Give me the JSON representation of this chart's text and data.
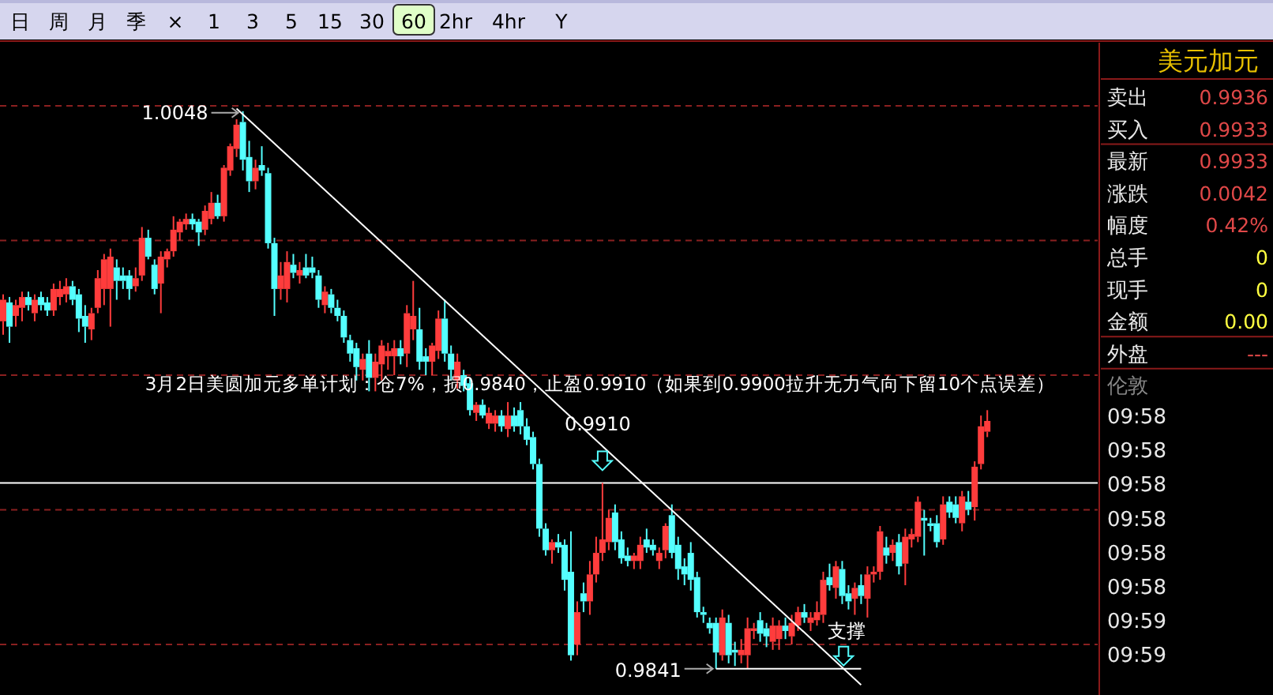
{
  "chart_data": [
    {
      "type": "candlestick",
      "categories": [
        null,
        null,
        null,
        null,
        null,
        null,
        null,
        null,
        null,
        null,
        null,
        null,
        null,
        null,
        null,
        null,
        null,
        null,
        null,
        null,
        null,
        null,
        null,
        null,
        null,
        null,
        null,
        null,
        null,
        null,
        null,
        null,
        null,
        null,
        null,
        null,
        null,
        null,
        null,
        null,
        null,
        null,
        null,
        null,
        null,
        null,
        null,
        null,
        null,
        null,
        null,
        null,
        null,
        null,
        null,
        null,
        null,
        null,
        null,
        null,
        null,
        null,
        null,
        null,
        null,
        null,
        null,
        null,
        null,
        null,
        null,
        null,
        null,
        null,
        null,
        null,
        null,
        null,
        null,
        null,
        null,
        null,
        null,
        null,
        null,
        null,
        null,
        null,
        null,
        null,
        null,
        null,
        null,
        null,
        null,
        null,
        null,
        null,
        null,
        null,
        null,
        null,
        null,
        null,
        null,
        null,
        null,
        null,
        null,
        null,
        null,
        null,
        null,
        null,
        null,
        null,
        null,
        null,
        null,
        null,
        null,
        null,
        null,
        null,
        null,
        null,
        null,
        null,
        null,
        null,
        null,
        null,
        null,
        null,
        null,
        null,
        null,
        null,
        null,
        null,
        null,
        null,
        null,
        null,
        null,
        null,
        null,
        null,
        null,
        null,
        null,
        null,
        null,
        null,
        null,
        null,
        null
      ],
      "ohlc": [
        [
          0.997,
          0.998,
          0.9965,
          0.9978
        ],
        [
          0.9977,
          0.9979,
          0.9962,
          0.9968
        ],
        [
          0.9972,
          0.9978,
          0.9968,
          0.9976
        ],
        [
          0.9975,
          0.9981,
          0.997,
          0.9979
        ],
        [
          0.9979,
          0.9981,
          0.9974,
          0.9976
        ],
        [
          0.9973,
          0.998,
          0.997,
          0.9978
        ],
        [
          0.9979,
          0.9981,
          0.9974,
          0.9976
        ],
        [
          0.9977,
          0.9979,
          0.9972,
          0.9974
        ],
        [
          0.9974,
          0.9984,
          0.9972,
          0.9982
        ],
        [
          0.9979,
          0.9985,
          0.9976,
          0.9982
        ],
        [
          0.998,
          0.9986,
          0.9977,
          0.9983
        ],
        [
          0.9983,
          0.9985,
          0.9976,
          0.9978
        ],
        [
          0.998,
          0.9982,
          0.9966,
          0.9971
        ],
        [
          0.9972,
          0.9976,
          0.9962,
          0.9968
        ],
        [
          0.9967,
          0.9975,
          0.9963,
          0.9973
        ],
        [
          0.9975,
          0.9989,
          0.9973,
          0.9986
        ],
        [
          0.9982,
          0.9995,
          0.9976,
          0.9993
        ],
        [
          0.9982,
          0.9997,
          0.9968,
          0.9994
        ],
        [
          0.999,
          0.9993,
          0.9978,
          0.9985
        ],
        [
          0.9987,
          0.999,
          0.9982,
          0.9985
        ],
        [
          0.9987,
          0.9989,
          0.9978,
          0.9982
        ],
        [
          0.9983,
          0.999,
          0.9981,
          0.9986
        ],
        [
          0.9987,
          1.0005,
          0.9985,
          1.0001
        ],
        [
          1.0001,
          1.0004,
          0.9993,
          0.9994
        ],
        [
          0.9991,
          0.9993,
          0.998,
          0.9982
        ],
        [
          0.9984,
          0.9996,
          0.9973,
          0.9994
        ],
        [
          0.9993,
          0.9997,
          0.999,
          0.9996
        ],
        [
          0.9996,
          1.0009,
          0.9994,
          1.0004
        ],
        [
          1.0003,
          1.0008,
          1.0,
          1.0007
        ],
        [
          1.0006,
          1.001,
          1.0004,
          1.0008
        ],
        [
          1.0008,
          1.001,
          1.0004,
          1.0006
        ],
        [
          1.0007,
          1.0008,
          0.9998,
          1.0003
        ],
        [
          1.0004,
          1.0013,
          1.0002,
          1.0011
        ],
        [
          1.0008,
          1.0018,
          1.0006,
          1.0014
        ],
        [
          1.0014,
          1.0017,
          1.0008,
          1.0009
        ],
        [
          1.0009,
          1.0028,
          1.0007,
          1.0027
        ],
        [
          1.0026,
          1.0036,
          1.0024,
          1.0035
        ],
        [
          1.0034,
          1.0045,
          1.0031,
          1.0043
        ],
        [
          1.0044,
          1.0048,
          1.0026,
          1.003
        ],
        [
          1.0031,
          1.0037,
          1.0018,
          1.0022
        ],
        [
          1.0022,
          1.003,
          1.0019,
          1.0027
        ],
        [
          1.0028,
          1.0035,
          1.0024,
          1.0026
        ],
        [
          1.0025,
          1.0027,
          0.9997,
          0.9999
        ],
        [
          0.9999,
          1.0001,
          0.9972,
          0.9982
        ],
        [
          0.9982,
          0.9992,
          0.9978,
          0.9987
        ],
        [
          0.9982,
          0.9996,
          0.9977,
          0.9992
        ],
        [
          0.9991,
          0.9995,
          0.9986,
          0.9988
        ],
        [
          0.9987,
          0.9992,
          0.9984,
          0.9989
        ],
        [
          0.999,
          0.9995,
          0.9986,
          0.9987
        ],
        [
          0.999,
          0.9994,
          0.9986,
          0.9988
        ],
        [
          0.9987,
          0.9989,
          0.9975,
          0.9978
        ],
        [
          0.9976,
          0.9983,
          0.9973,
          0.9981
        ],
        [
          0.998,
          0.9982,
          0.9973,
          0.9975
        ],
        [
          0.9975,
          0.9978,
          0.997,
          0.9972
        ],
        [
          0.9972,
          0.9974,
          0.9962,
          0.9964
        ],
        [
          0.9963,
          0.9965,
          0.9955,
          0.9958
        ],
        [
          0.996,
          0.9962,
          0.9948,
          0.9953
        ],
        [
          0.9952,
          0.9958,
          0.9948,
          0.9956
        ],
        [
          0.9958,
          0.9963,
          0.9944,
          0.9949
        ],
        [
          0.9949,
          0.9958,
          0.9944,
          0.9955
        ],
        [
          0.9954,
          0.9963,
          0.9948,
          0.9961
        ],
        [
          0.9957,
          0.9962,
          0.9952,
          0.9959
        ],
        [
          0.9957,
          0.9963,
          0.995,
          0.996
        ],
        [
          0.996,
          0.9963,
          0.9954,
          0.9957
        ],
        [
          0.9958,
          0.9976,
          0.9953,
          0.9973
        ],
        [
          0.9967,
          0.9985,
          0.9963,
          0.9972
        ],
        [
          0.9967,
          0.9975,
          0.9952,
          0.9955
        ],
        [
          0.9957,
          0.996,
          0.995,
          0.9955
        ],
        [
          0.9955,
          0.9962,
          0.995,
          0.9961
        ],
        [
          0.9959,
          0.9974,
          0.9956,
          0.9971
        ],
        [
          0.9971,
          0.9978,
          0.9955,
          0.9958
        ],
        [
          0.9958,
          0.9961,
          0.9948,
          0.9952
        ],
        [
          0.9948,
          0.9958,
          0.9945,
          0.9955
        ],
        [
          0.995,
          0.9952,
          0.9944,
          0.9946
        ],
        [
          0.9947,
          0.9949,
          0.9935,
          0.9937
        ],
        [
          0.9936,
          0.994,
          0.9933,
          0.9939
        ],
        [
          0.9939,
          0.9941,
          0.9934,
          0.9935
        ],
        [
          0.9932,
          0.9938,
          0.993,
          0.9936
        ],
        [
          0.9932,
          0.9937,
          0.9929,
          0.9935
        ],
        [
          0.9935,
          0.9937,
          0.9929,
          0.9931
        ],
        [
          0.993,
          0.994,
          0.9927,
          0.9935
        ],
        [
          0.9935,
          0.9938,
          0.9929,
          0.9931
        ],
        [
          0.9937,
          0.994,
          0.9928,
          0.9931
        ],
        [
          0.9931,
          0.9934,
          0.9924,
          0.9926
        ],
        [
          0.9927,
          0.9929,
          0.9915,
          0.9917
        ],
        [
          0.9917,
          0.9919,
          0.989,
          0.9893
        ],
        [
          0.9893,
          0.9895,
          0.9883,
          0.9885
        ],
        [
          0.9885,
          0.9889,
          0.988,
          0.9888
        ],
        [
          0.9888,
          0.9891,
          0.9884,
          0.9886
        ],
        [
          0.9887,
          0.9889,
          0.987,
          0.9874
        ],
        [
          0.9877,
          0.9892,
          0.9844,
          0.9846
        ],
        [
          0.985,
          0.9866,
          0.9846,
          0.9862
        ],
        [
          0.9869,
          0.9873,
          0.9862,
          0.9866
        ],
        [
          0.9866,
          0.9881,
          0.9861,
          0.9876
        ],
        [
          0.9876,
          0.989,
          0.9873,
          0.9884
        ],
        [
          0.9884,
          0.991,
          0.9881,
          0.9889
        ],
        [
          0.9888,
          0.99,
          0.9885,
          0.9897
        ],
        [
          0.9899,
          0.9902,
          0.9885,
          0.9888
        ],
        [
          0.9889,
          0.9892,
          0.988,
          0.9882
        ],
        [
          0.9883,
          0.9886,
          0.9879,
          0.9881
        ],
        [
          0.9881,
          0.9884,
          0.9878,
          0.9883
        ],
        [
          0.9881,
          0.989,
          0.9878,
          0.9887
        ],
        [
          0.9889,
          0.9893,
          0.9884,
          0.9886
        ],
        [
          0.9887,
          0.9889,
          0.9883,
          0.9885
        ],
        [
          0.9881,
          0.9886,
          0.9878,
          0.9884
        ],
        [
          0.9885,
          0.9895,
          0.9882,
          0.9894
        ],
        [
          0.9898,
          0.9902,
          0.9882,
          0.9884
        ],
        [
          0.9887,
          0.989,
          0.9874,
          0.9878
        ],
        [
          0.9879,
          0.9882,
          0.9872,
          0.9876
        ],
        [
          0.9884,
          0.9888,
          0.987,
          0.9874
        ],
        [
          0.9875,
          0.9877,
          0.986,
          0.9862
        ],
        [
          0.9862,
          0.9864,
          0.9858,
          0.9861
        ],
        [
          0.9858,
          0.986,
          0.9854,
          0.9856
        ],
        [
          0.9858,
          0.986,
          0.9841,
          0.9847
        ],
        [
          0.9846,
          0.9863,
          0.9844,
          0.986
        ],
        [
          0.9858,
          0.9861,
          0.9843,
          0.9846
        ],
        [
          0.9848,
          0.9851,
          0.9842,
          0.9847
        ],
        [
          0.9846,
          0.9852,
          0.9843,
          0.9848
        ],
        [
          0.9846,
          0.986,
          0.9841,
          0.9856
        ],
        [
          0.9855,
          0.9858,
          0.9852,
          0.9856
        ],
        [
          0.9859,
          0.9862,
          0.9851,
          0.9854
        ],
        [
          0.9856,
          0.9858,
          0.9849,
          0.9853
        ],
        [
          0.9851,
          0.986,
          0.9848,
          0.9857
        ],
        [
          0.9852,
          0.9859,
          0.9848,
          0.9857
        ],
        [
          0.9857,
          0.986,
          0.9852,
          0.9855
        ],
        [
          0.9853,
          0.9861,
          0.985,
          0.9858
        ],
        [
          0.9857,
          0.9864,
          0.9855,
          0.9862
        ],
        [
          0.9862,
          0.9865,
          0.9858,
          0.986
        ],
        [
          0.9858,
          0.9862,
          0.9855,
          0.986
        ],
        [
          0.9859,
          0.9866,
          0.9857,
          0.9862
        ],
        [
          0.9861,
          0.9877,
          0.9858,
          0.9874
        ],
        [
          0.9875,
          0.988,
          0.987,
          0.9872
        ],
        [
          0.9871,
          0.9881,
          0.9867,
          0.9879
        ],
        [
          0.9878,
          0.9881,
          0.9865,
          0.9868
        ],
        [
          0.9869,
          0.9872,
          0.9863,
          0.9866
        ],
        [
          0.9867,
          0.9873,
          0.9861,
          0.9871
        ],
        [
          0.9872,
          0.9876,
          0.9865,
          0.9868
        ],
        [
          0.9867,
          0.9879,
          0.986,
          0.9876
        ],
        [
          0.9876,
          0.9879,
          0.9873,
          0.9877
        ],
        [
          0.9877,
          0.9894,
          0.9874,
          0.9892
        ],
        [
          0.9886,
          0.989,
          0.988,
          0.9883
        ],
        [
          0.9884,
          0.9889,
          0.9881,
          0.9887
        ],
        [
          0.9888,
          0.9891,
          0.9876,
          0.9879
        ],
        [
          0.988,
          0.9893,
          0.9872,
          0.989
        ],
        [
          0.9889,
          0.9893,
          0.9886,
          0.9891
        ],
        [
          0.989,
          0.9905,
          0.9888,
          0.9903
        ],
        [
          0.9897,
          0.99,
          0.9883,
          0.9896
        ],
        [
          0.9895,
          0.9897,
          0.9892,
          0.9894
        ],
        [
          0.9895,
          0.9898,
          0.9886,
          0.9888
        ],
        [
          0.9889,
          0.9905,
          0.9887,
          0.9902
        ],
        [
          0.9903,
          0.9905,
          0.9897,
          0.9899
        ],
        [
          0.9902,
          0.9905,
          0.9895,
          0.9897
        ],
        [
          0.9895,
          0.9907,
          0.9892,
          0.9905
        ],
        [
          0.9903,
          0.9907,
          0.9898,
          0.99
        ],
        [
          0.9901,
          0.9918,
          0.9896,
          0.9916
        ],
        [
          0.9917,
          0.9935,
          0.9915,
          0.9931
        ],
        [
          0.9929,
          0.9937,
          0.9927,
          0.9933
        ]
      ],
      "series": [
        {
          "type": "line",
          "color": "#ffffff",
          "values": [
            null,
            null,
            null,
            null,
            null,
            null,
            null,
            null,
            null,
            null,
            null,
            null,
            null,
            null,
            null,
            null,
            null,
            null,
            null,
            null,
            null,
            null,
            null,
            null,
            null,
            null,
            null,
            null,
            null,
            null,
            null,
            null,
            null,
            null,
            null,
            null,
            null,
            1.0049,
            null,
            null,
            null,
            null,
            null,
            null,
            null,
            null,
            null,
            null,
            null,
            null,
            null,
            null,
            null,
            null,
            null,
            null,
            null,
            null,
            null,
            null,
            null,
            null,
            null,
            null,
            null,
            null,
            null,
            null,
            null,
            null,
            null,
            null,
            null,
            null,
            null,
            null,
            null,
            null,
            null,
            null,
            null,
            null,
            null,
            null,
            null,
            null,
            null,
            null,
            null,
            null,
            null,
            null,
            null,
            null,
            null,
            null,
            null,
            null,
            null,
            null,
            null,
            null,
            null,
            null,
            null,
            null,
            null,
            null,
            null,
            null,
            null,
            null,
            null,
            null,
            null,
            null,
            null,
            null,
            null,
            null,
            null,
            null,
            null,
            null,
            null,
            null,
            null,
            null,
            null,
            null,
            null,
            null,
            null,
            null,
            null,
            null,
            0.9835,
            null,
            null,
            null,
            null,
            null,
            null,
            null,
            null,
            null,
            null,
            null,
            null,
            null,
            null,
            null,
            null,
            null,
            null,
            null,
            null
          ]
        },
        {
          "type": "line",
          "color": "#ffffff",
          "values": [
            null,
            null,
            null,
            null,
            null,
            null,
            null,
            null,
            null,
            null,
            null,
            null,
            null,
            null,
            null,
            null,
            null,
            null,
            null,
            null,
            null,
            null,
            null,
            null,
            null,
            null,
            null,
            null,
            null,
            null,
            null,
            null,
            null,
            null,
            null,
            null,
            null,
            null,
            null,
            null,
            null,
            null,
            null,
            null,
            null,
            null,
            null,
            null,
            null,
            null,
            null,
            null,
            null,
            null,
            null,
            null,
            null,
            null,
            null,
            null,
            null,
            null,
            null,
            null,
            null,
            null,
            null,
            null,
            null,
            null,
            null,
            null,
            null,
            null,
            null,
            null,
            null,
            null,
            null,
            null,
            null,
            null,
            null,
            null,
            null,
            null,
            null,
            null,
            null,
            null,
            null,
            null,
            null,
            null,
            null,
            null,
            null,
            null,
            null,
            null,
            null,
            null,
            null,
            null,
            null,
            null,
            null,
            null,
            null,
            null,
            null,
            null,
            null,
            0.9841,
            null,
            null,
            null,
            null,
            null,
            null,
            null,
            null,
            null,
            null,
            null,
            null,
            null,
            null,
            null,
            null,
            null,
            null,
            null,
            null,
            null,
            null,
            0.9841,
            null,
            null,
            null,
            null,
            null,
            null,
            null,
            null,
            null,
            null,
            null,
            null,
            null,
            null,
            null,
            null,
            null,
            null,
            null,
            null
          ]
        }
      ],
      "yticks": [
        {
          "value": 0.985,
          "label": null
        },
        {
          "value": 0.99,
          "label": null
        },
        {
          "value": 0.995,
          "label": null
        },
        {
          "value": 1.0,
          "label": null
        },
        {
          "value": 1.005,
          "label": null
        }
      ],
      "grid": "y",
      "ref_lines": [
        {
          "axis": "y",
          "value": 0.991,
          "color": "#ffffff"
        }
      ],
      "annotations": [
        "1.0048",
        {
          "text": "0.9910",
          "y": 0.991
        },
        "0.9841",
        {
          "text": "支撑",
          "y": 0.9841
        },
        "3月2日美圆加元多单计划：仓7%，损0.9840，止盈0.9910（如果到0.9900拉升无力气向下留10个点误差）"
      ]
    },
    {
      "type": "other",
      "categories": [
        "日",
        "周",
        "月",
        "季",
        "×",
        "1",
        "3",
        "5",
        "15",
        "30",
        "60",
        "2hr",
        "4hr",
        "Y"
      ],
      "colors": [
        null,
        null,
        null,
        null,
        null,
        null,
        null,
        null,
        null,
        null,
        "#e0ffc8",
        null,
        null,
        null
      ]
    },
    {
      "type": "other",
      "title": "美元加元",
      "categories": [
        "卖出",
        "买入",
        "最新",
        "涨跌",
        "幅度",
        "总手",
        "现手",
        "金额",
        "外盘",
        "伦敦",
        "09:58",
        "09:58",
        "09:58",
        "09:58",
        "09:58",
        "09:58",
        "09:59",
        "09:59"
      ],
      "value_labels": [
        "0.9936",
        "0.9933",
        "0.9933",
        "0.0042",
        "0.42%",
        "0",
        "0",
        "0.00",
        "---",
        null,
        null,
        null,
        null,
        null,
        null,
        null,
        null,
        null
      ],
      "colors": [
        "#e04848",
        "#e04848",
        "#e04848",
        "#e04848",
        "#e04848",
        "#ffff40",
        "#ffff40",
        "#ffff40",
        "#e04848",
        null,
        null,
        null,
        null,
        null,
        null,
        null,
        null,
        null
      ]
    }
  ]
}
